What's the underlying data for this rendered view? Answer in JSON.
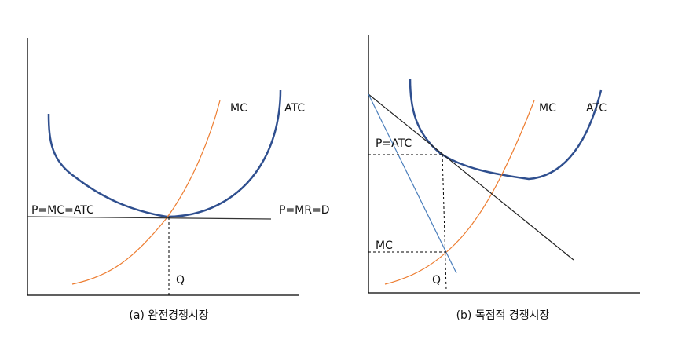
{
  "panels": [
    {
      "labels": {
        "mc": "MC",
        "atc": "ATC",
        "price": "P=MC=ATC",
        "demand": "P=MR=D",
        "quantity": "Q"
      },
      "caption": "(a)  완전경쟁시장"
    },
    {
      "labels": {
        "mc": "MC",
        "atc": "ATC",
        "price": "P=ATC",
        "mc_level": "MC",
        "quantity": "Q"
      },
      "caption": "(b)  독점적 경쟁시장"
    }
  ]
}
